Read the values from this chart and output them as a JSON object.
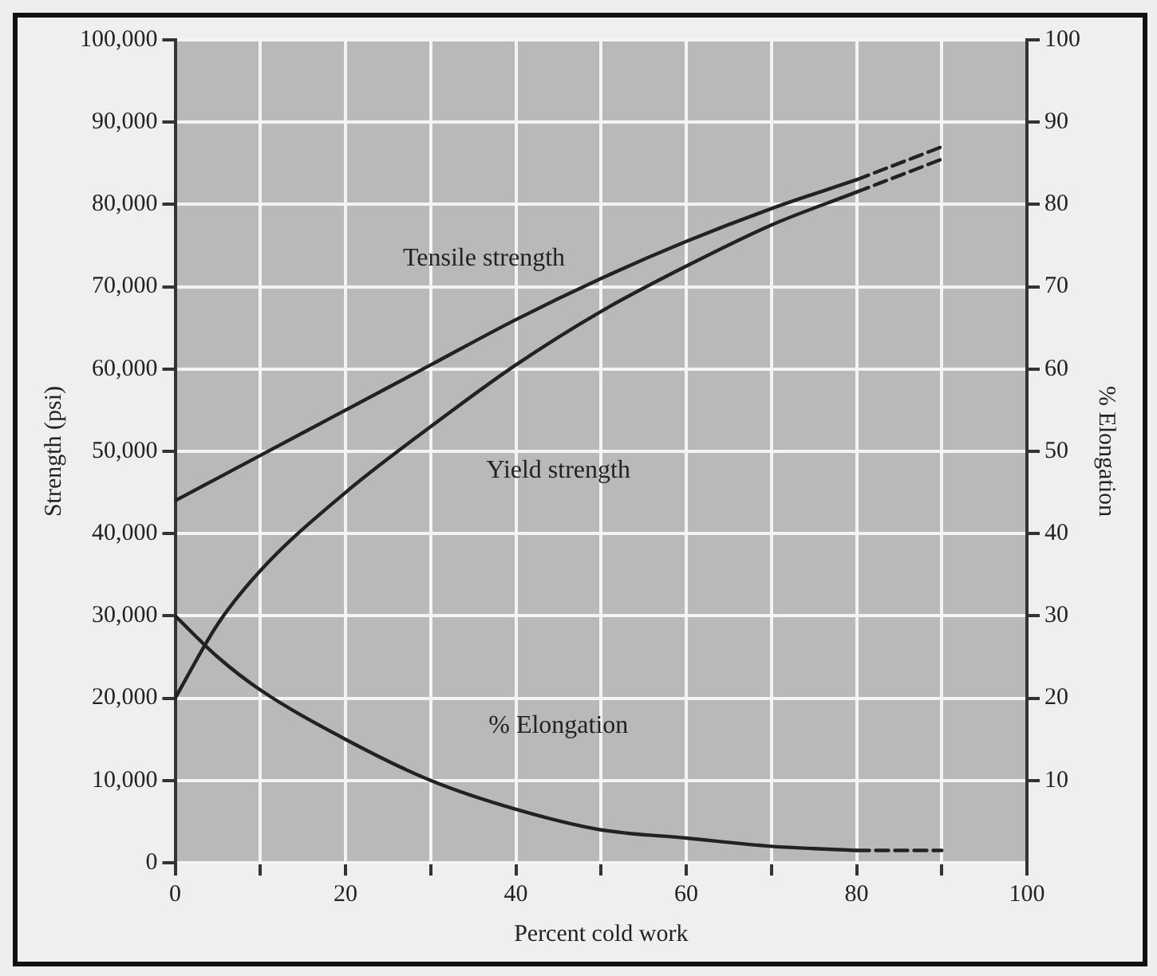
{
  "chart_data": {
    "type": "line",
    "xlabel": "Percent cold work",
    "ylabel": "Strength (psi)",
    "y2label": "% Elongation",
    "xlim": [
      0,
      100
    ],
    "xticks": [
      0,
      {
        "value": 10,
        "label": null
      },
      20,
      {
        "value": 30,
        "label": null
      },
      40,
      {
        "value": 50,
        "label": null
      },
      60,
      {
        "value": 70,
        "label": null
      },
      80,
      {
        "value": 90,
        "label": null
      },
      100
    ],
    "ylim": [
      0,
      100000
    ],
    "yticks": [
      {
        "value": 0,
        "label": "0"
      },
      {
        "value": 10000,
        "label": "10,000"
      },
      {
        "value": 20000,
        "label": "20,000"
      },
      {
        "value": 30000,
        "label": "30,000"
      },
      {
        "value": 40000,
        "label": "40,000"
      },
      {
        "value": 50000,
        "label": "50,000"
      },
      {
        "value": 60000,
        "label": "60,000"
      },
      {
        "value": 70000,
        "label": "70,000"
      },
      {
        "value": 80000,
        "label": "80,000"
      },
      {
        "value": 90000,
        "label": "90,000"
      },
      {
        "value": 100000,
        "label": "100,000"
      }
    ],
    "y2lim": [
      0,
      100
    ],
    "y2ticks": [
      10,
      20,
      30,
      40,
      50,
      60,
      70,
      80,
      90,
      100
    ],
    "grid": true,
    "legend": false,
    "marker": "none",
    "series": [
      {
        "name": "Tensile strength",
        "color": "#222222",
        "line_style": "solid",
        "x": [
          0,
          10,
          20,
          30,
          40,
          50,
          60,
          70,
          80
        ],
        "values": [
          44000,
          49500,
          55000,
          60500,
          66000,
          71000,
          75500,
          79500,
          83000
        ]
      },
      {
        "name": "Yield strength",
        "color": "#222222",
        "line_style": "solid",
        "x": [
          0,
          5,
          10,
          20,
          30,
          40,
          50,
          60,
          70,
          80
        ],
        "values": [
          20000,
          29000,
          35500,
          45000,
          53000,
          60500,
          67000,
          72500,
          77500,
          81500
        ]
      },
      {
        "name": "% Elongation",
        "color": "#222222",
        "line_style": "solid",
        "axis": "y2",
        "x": [
          0,
          5,
          10,
          20,
          30,
          40,
          50,
          60,
          70,
          80
        ],
        "values": [
          30,
          25,
          21,
          15,
          10,
          6.5,
          4,
          3,
          2,
          1.5
        ]
      },
      {
        "color": "#222222",
        "line_style": "dashed",
        "x": [
          80,
          90
        ],
        "values": [
          83000,
          87000
        ]
      },
      {
        "color": "#222222",
        "line_style": "dashed",
        "x": [
          80,
          90
        ],
        "values": [
          81500,
          85500
        ]
      },
      {
        "color": "#222222",
        "line_style": "dashed",
        "axis": "y2",
        "x": [
          80,
          90
        ],
        "values": [
          1.5,
          1.5
        ]
      }
    ]
  }
}
